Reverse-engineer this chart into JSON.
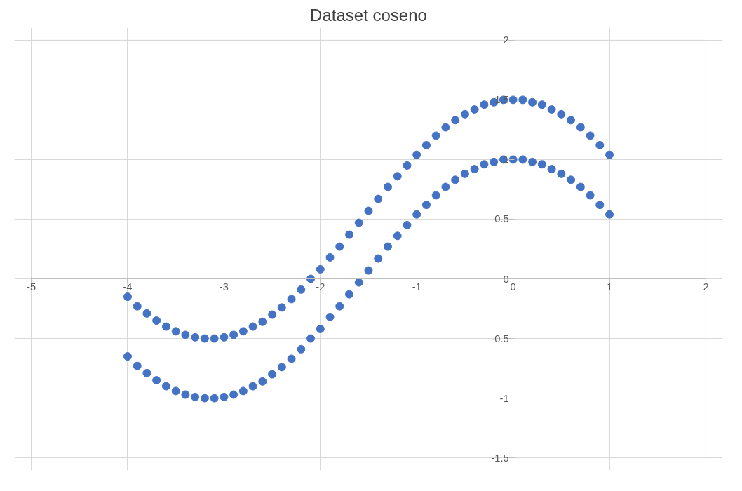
{
  "chart_data": {
    "type": "scatter",
    "title": "Dataset coseno",
    "marker": "circle",
    "grid": true,
    "xlim": [
      -5,
      2
    ],
    "xticks": [
      -5,
      -4,
      -3,
      -2,
      -1,
      0,
      1,
      2
    ],
    "ylim": [
      -1.5,
      2
    ],
    "yticks": [
      -1.5,
      -1,
      -0.5,
      0,
      0.5,
      1,
      1.5,
      2
    ],
    "x": [
      -4,
      -3.9,
      -3.8,
      -3.7,
      -3.6,
      -3.5,
      -3.4,
      -3.3,
      -3.2,
      -3.1,
      -3,
      -2.9,
      -2.8,
      -2.7,
      -2.6,
      -2.5,
      -2.4,
      -2.3,
      -2.2,
      -2.1,
      -2,
      -1.9,
      -1.8,
      -1.7,
      -1.6,
      -1.5,
      -1.4,
      -1.3,
      -1.2,
      -1.1,
      -1,
      -0.9,
      -0.8,
      -0.7,
      -0.6,
      -0.5,
      -0.4,
      -0.3,
      -0.2,
      -0.1,
      0,
      0.1,
      0.2,
      0.3,
      0.4,
      0.5,
      0.6,
      0.7,
      0.8,
      0.9,
      1
    ],
    "series": [
      {
        "color": "#4472c4",
        "values": [
          -0.65,
          -0.73,
          -0.79,
          -0.85,
          -0.9,
          -0.94,
          -0.97,
          -0.99,
          -1,
          -1,
          -0.99,
          -0.97,
          -0.94,
          -0.9,
          -0.86,
          -0.8,
          -0.74,
          -0.67,
          -0.59,
          -0.5,
          -0.42,
          -0.32,
          -0.23,
          -0.13,
          -0.03,
          0.07,
          0.17,
          0.27,
          0.36,
          0.45,
          0.54,
          0.62,
          0.7,
          0.77,
          0.83,
          0.88,
          0.92,
          0.96,
          0.98,
          1,
          1,
          1,
          0.98,
          0.96,
          0.92,
          0.88,
          0.83,
          0.77,
          0.7,
          0.62,
          0.54
        ]
      },
      {
        "color": "#4472c4",
        "values": [
          -0.15,
          -0.23,
          -0.29,
          -0.35,
          -0.4,
          -0.44,
          -0.47,
          -0.49,
          -0.5,
          -0.5,
          -0.49,
          -0.47,
          -0.44,
          -0.4,
          -0.36,
          -0.3,
          -0.24,
          -0.17,
          -0.09,
          0,
          0.08,
          0.18,
          0.27,
          0.37,
          0.47,
          0.57,
          0.67,
          0.77,
          0.86,
          0.95,
          1.04,
          1.12,
          1.2,
          1.27,
          1.33,
          1.38,
          1.42,
          1.46,
          1.48,
          1.5,
          1.5,
          1.5,
          1.48,
          1.46,
          1.42,
          1.38,
          1.33,
          1.27,
          1.2,
          1.12,
          1.04
        ]
      }
    ]
  }
}
